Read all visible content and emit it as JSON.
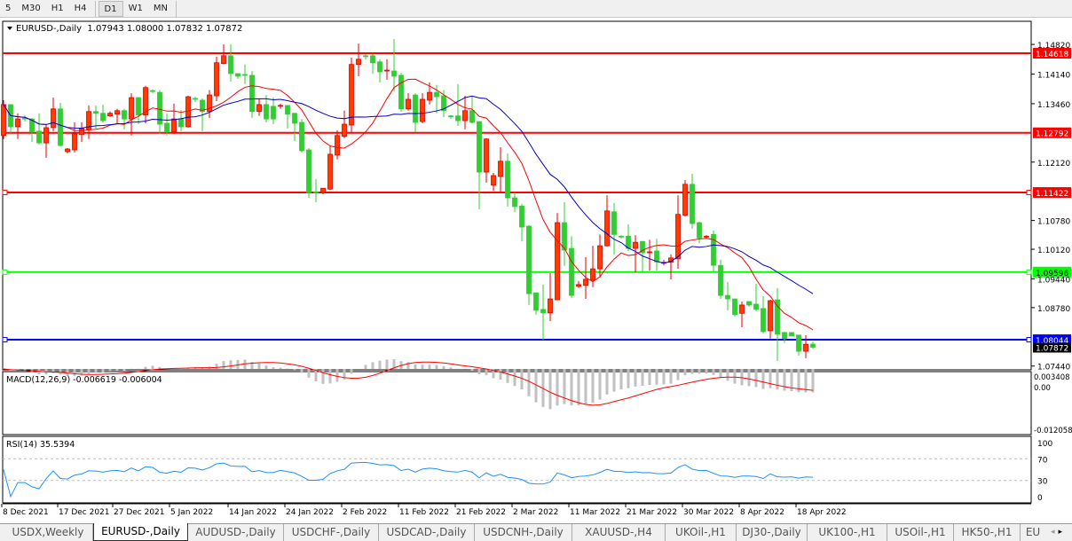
{
  "toolbar": {
    "timeframes": [
      {
        "label": "5"
      },
      {
        "label": "M30"
      },
      {
        "label": "H1"
      },
      {
        "label": "H4"
      },
      {
        "label": "D1",
        "active": true
      },
      {
        "label": "W1"
      },
      {
        "label": "MN"
      }
    ]
  },
  "chart": {
    "header": "EURUSD-,Daily  1.07943 1.08000 1.07832 1.07872",
    "bull_color": "#ff3c00",
    "bear_color": "#32cd32",
    "ma_fast_color": "#ff0000",
    "ma_slow_color": "#0000cc",
    "price_ticks": [
      "1.14820",
      "1.14140",
      "1.13460",
      "1.12120",
      "1.10780",
      "1.10120",
      "1.09440",
      "1.08780",
      "1.07440"
    ],
    "price_tick_values": [
      1.1482,
      1.1414,
      1.1346,
      1.1212,
      1.1078,
      1.1012,
      1.0944,
      1.0878,
      1.0744
    ],
    "levels": [
      {
        "label": "1.14618",
        "value": 1.14618,
        "color": "#ff0000"
      },
      {
        "label": "1.12792",
        "value": 1.12792,
        "color": "#ff0000"
      },
      {
        "label": "1.11422",
        "value": 1.11422,
        "color": "#ff0000"
      },
      {
        "label": "1.09596",
        "value": 1.09596,
        "color": "#00ff00"
      },
      {
        "label": "1.08044",
        "value": 1.08044,
        "color": "#0000ff"
      }
    ],
    "current_price": {
      "label": "1.07872",
      "value": 1.07872
    },
    "dates": [
      "8 Dec 2021",
      "17 Dec 2021",
      "27 Dec 2021",
      "5 Jan 2022",
      "14 Jan 2022",
      "24 Jan 2022",
      "2 Feb 2022",
      "11 Feb 2022",
      "21 Feb 2022",
      "2 Mar 2022",
      "11 Mar 2022",
      "21 Mar 2022",
      "30 Mar 2022",
      "8 Apr 2022",
      "18 Apr 2022"
    ],
    "macd": {
      "header": "MACD(12,26,9) -0.006619 -0.006004",
      "ticks": [
        "0.003408",
        "0.00",
        "-0.012058"
      ]
    },
    "rsi": {
      "header": "RSI(14) 35.5394",
      "ticks": [
        "100",
        "70",
        "30",
        "0"
      ]
    }
  },
  "chart_data": {
    "type": "candlestick",
    "symbol": "EURUSD-",
    "timeframe": "Daily",
    "ohlc_order": [
      "open",
      "high",
      "low",
      "close"
    ],
    "candles": [
      [
        1.1273,
        1.1354,
        1.1265,
        1.1344
      ],
      [
        1.1344,
        1.1344,
        1.1279,
        1.1293
      ],
      [
        1.1293,
        1.1324,
        1.1265,
        1.1311
      ],
      [
        1.1313,
        1.132,
        1.1305,
        1.1311
      ],
      [
        1.1311,
        1.1313,
        1.1258,
        1.1281
      ],
      [
        1.1283,
        1.1324,
        1.1252,
        1.1256
      ],
      [
        1.1256,
        1.1299,
        1.1222,
        1.1291
      ],
      [
        1.1291,
        1.136,
        1.1283,
        1.1334
      ],
      [
        1.1334,
        1.1348,
        1.1248,
        1.125
      ],
      [
        1.1236,
        1.1244,
        1.1232,
        1.1242
      ],
      [
        1.124,
        1.1303,
        1.1234,
        1.1277
      ],
      [
        1.1275,
        1.1303,
        1.1258,
        1.1289
      ],
      [
        1.1287,
        1.1342,
        1.1265,
        1.1328
      ],
      [
        1.1328,
        1.1342,
        1.1289,
        1.1324
      ],
      [
        1.1324,
        1.1344,
        1.1303,
        1.1307
      ],
      [
        1.1318,
        1.1328,
        1.1316,
        1.1324
      ],
      [
        1.1322,
        1.1334,
        1.1301,
        1.133
      ],
      [
        1.133,
        1.1334,
        1.1287,
        1.1311
      ],
      [
        1.1311,
        1.137,
        1.1273,
        1.136
      ],
      [
        1.136,
        1.136,
        1.1299,
        1.132
      ],
      [
        1.132,
        1.1387,
        1.1301,
        1.1383
      ],
      [
        1.1376,
        1.1379,
        1.137,
        1.1374
      ],
      [
        1.1372,
        1.1377,
        1.1277,
        1.1299
      ],
      [
        1.1301,
        1.1324,
        1.1273,
        1.1281
      ],
      [
        1.1281,
        1.1346,
        1.1277,
        1.1311
      ],
      [
        1.1311,
        1.1332,
        1.1283,
        1.1293
      ],
      [
        1.1293,
        1.1364,
        1.1291,
        1.1362
      ],
      [
        1.1358,
        1.1362,
        1.135,
        1.1356
      ],
      [
        1.1354,
        1.1358,
        1.1283,
        1.1328
      ],
      [
        1.1328,
        1.1377,
        1.1313,
        1.1366
      ],
      [
        1.1364,
        1.1454,
        1.1352,
        1.144
      ],
      [
        1.1438,
        1.1482,
        1.1436,
        1.1456
      ],
      [
        1.1456,
        1.1482,
        1.1397,
        1.1415
      ],
      [
        1.1415,
        1.1415,
        1.1403,
        1.1409
      ],
      [
        1.1413,
        1.1436,
        1.1391,
        1.1411
      ],
      [
        1.1411,
        1.1421,
        1.1313,
        1.1328
      ],
      [
        1.1328,
        1.1358,
        1.1318,
        1.1344
      ],
      [
        1.1344,
        1.1366,
        1.1303,
        1.1311
      ],
      [
        1.134,
        1.136,
        1.1299,
        1.1311
      ],
      [
        1.134,
        1.1346,
        1.1334,
        1.1342
      ],
      [
        1.1342,
        1.1342,
        1.1289,
        1.1322
      ],
      [
        1.1324,
        1.1324,
        1.126,
        1.1301
      ],
      [
        1.1303,
        1.1311,
        1.1234,
        1.1238
      ],
      [
        1.124,
        1.1244,
        1.113,
        1.1142
      ],
      [
        1.1144,
        1.1173,
        1.112,
        1.1142
      ],
      [
        1.1142,
        1.1152,
        1.1138,
        1.1152
      ],
      [
        1.115,
        1.1248,
        1.1148,
        1.123
      ],
      [
        1.1228,
        1.1285,
        1.1218,
        1.1273
      ],
      [
        1.1271,
        1.133,
        1.1267,
        1.1299
      ],
      [
        1.1297,
        1.1452,
        1.1279,
        1.1436
      ],
      [
        1.1436,
        1.1484,
        1.1409,
        1.1448
      ],
      [
        1.1456,
        1.146,
        1.1448,
        1.1454
      ],
      [
        1.1456,
        1.146,
        1.1415,
        1.144
      ],
      [
        1.1442,
        1.1448,
        1.1395,
        1.1419
      ],
      [
        1.1421,
        1.1448,
        1.1401,
        1.1423
      ],
      [
        1.1421,
        1.1494,
        1.1374,
        1.1409
      ],
      [
        1.1411,
        1.1417,
        1.1328,
        1.1334
      ],
      [
        1.1334,
        1.137,
        1.133,
        1.1356
      ],
      [
        1.1366,
        1.137,
        1.1281,
        1.1303
      ],
      [
        1.1305,
        1.137,
        1.1301,
        1.1356
      ],
      [
        1.1354,
        1.1395,
        1.1344,
        1.1372
      ],
      [
        1.1372,
        1.1389,
        1.1324,
        1.1362
      ],
      [
        1.1364,
        1.1377,
        1.1315,
        1.133
      ],
      [
        1.1318,
        1.132,
        1.1311,
        1.1316
      ],
      [
        1.1318,
        1.1391,
        1.1295,
        1.1307
      ],
      [
        1.1307,
        1.1364,
        1.1287,
        1.133
      ],
      [
        1.133,
        1.1362,
        1.1301,
        1.1303
      ],
      [
        1.1305,
        1.1305,
        1.1104,
        1.1189
      ],
      [
        1.1189,
        1.1267,
        1.1165,
        1.1265
      ],
      [
        1.1159,
        1.1187,
        1.1146,
        1.1181
      ],
      [
        1.1179,
        1.1246,
        1.1144,
        1.1214
      ],
      [
        1.1214,
        1.1232,
        1.111,
        1.113
      ],
      [
        1.113,
        1.1142,
        1.1097,
        1.111
      ],
      [
        1.1111,
        1.1116,
        1.103,
        1.1063
      ],
      [
        1.1065,
        1.1067,
        1.0884,
        1.091
      ],
      [
        1.0912,
        1.0912,
        1.0862,
        1.0872
      ],
      [
        1.0874,
        1.0931,
        1.0804,
        1.0866
      ],
      [
        1.0866,
        1.0957,
        1.0847,
        1.0898
      ],
      [
        1.0896,
        1.1095,
        1.0896,
        1.1073
      ],
      [
        1.1073,
        1.112,
        1.0974,
        1.101
      ],
      [
        1.1014,
        1.1042,
        1.09,
        1.0906
      ],
      [
        1.0927,
        1.0939,
        1.0923,
        1.0931
      ],
      [
        1.0929,
        1.0994,
        1.0898,
        1.0943
      ],
      [
        1.0941,
        1.102,
        1.0925,
        1.0967
      ],
      [
        1.0967,
        1.1046,
        1.0947,
        1.102
      ],
      [
        1.102,
        1.1136,
        1.1018,
        1.11
      ],
      [
        1.1098,
        1.1118,
        1.0999,
        1.1046
      ],
      [
        1.1042,
        1.1044,
        1.1036,
        1.104
      ],
      [
        1.1042,
        1.1069,
        1.1008,
        1.1014
      ],
      [
        1.1014,
        1.1044,
        1.0959,
        1.1028
      ],
      [
        1.103,
        1.103,
        1.0959,
        1.1004
      ],
      [
        1.1004,
        1.1034,
        1.0963,
        1.1006
      ],
      [
        1.1008,
        1.1036,
        1.0963,
        1.0983
      ],
      [
        1.098,
        1.0988,
        1.0975,
        1.0982
      ],
      [
        1.0982,
        1.1,
        1.0943,
        1.0992
      ],
      [
        1.099,
        1.1136,
        1.0967,
        1.1092
      ],
      [
        1.109,
        1.1171,
        1.1087,
        1.1161
      ],
      [
        1.1161,
        1.1185,
        1.1059,
        1.1071
      ],
      [
        1.1073,
        1.1075,
        1.1026,
        1.1038
      ],
      [
        1.104,
        1.1044,
        1.1036,
        1.1042
      ],
      [
        1.1046,
        1.1055,
        1.0961,
        1.0975
      ],
      [
        1.0975,
        1.0988,
        1.0898,
        1.0906
      ],
      [
        1.0906,
        1.0937,
        1.0872,
        1.0898
      ],
      [
        1.0898,
        1.0898,
        1.0858,
        1.0862
      ],
      [
        1.0865,
        1.0892,
        1.0833,
        1.0884
      ],
      [
        1.0892,
        1.0892,
        1.088,
        1.0884
      ],
      [
        1.0886,
        1.0933,
        1.087,
        1.0874
      ],
      [
        1.0876,
        1.0904,
        1.0819,
        1.0823
      ],
      [
        1.0825,
        1.0896,
        1.0807,
        1.0894
      ],
      [
        1.0896,
        1.0923,
        1.0756,
        1.0817
      ],
      [
        1.0821,
        1.0823,
        1.0797,
        1.0807
      ],
      [
        1.0821,
        1.0821,
        1.0813,
        1.0813
      ],
      [
        1.0815,
        1.0815,
        1.0768,
        1.0778
      ],
      [
        1.0778,
        1.0815,
        1.0762,
        1.0794
      ],
      [
        1.07943,
        1.08,
        1.07832,
        1.07872
      ]
    ],
    "price_range": [
      1.0744,
      1.1482
    ],
    "indicators": [
      "Moving Average (red)",
      "Moving Average (blue)",
      "MACD(12,26,9)",
      "RSI(14)"
    ],
    "rsi_levels": [
      70,
      30
    ]
  },
  "tabs": [
    {
      "label": "USDX,Weekly"
    },
    {
      "label": "EURUSD-,Daily",
      "active": true
    },
    {
      "label": "AUDUSD-,Daily"
    },
    {
      "label": "USDCHF-,Daily"
    },
    {
      "label": "USDCAD-,Daily"
    },
    {
      "label": "USDCNH-,Daily"
    },
    {
      "label": "XAUUSD-,H4"
    },
    {
      "label": "UKOil-,H1"
    },
    {
      "label": "DJ30-,Daily"
    },
    {
      "label": "UK100-,H1"
    },
    {
      "label": "USOil-,H1"
    },
    {
      "label": "HK50-,H1"
    },
    {
      "label": "EU"
    }
  ],
  "tab_scroll": {
    "left": "◂",
    "right": "▸"
  }
}
